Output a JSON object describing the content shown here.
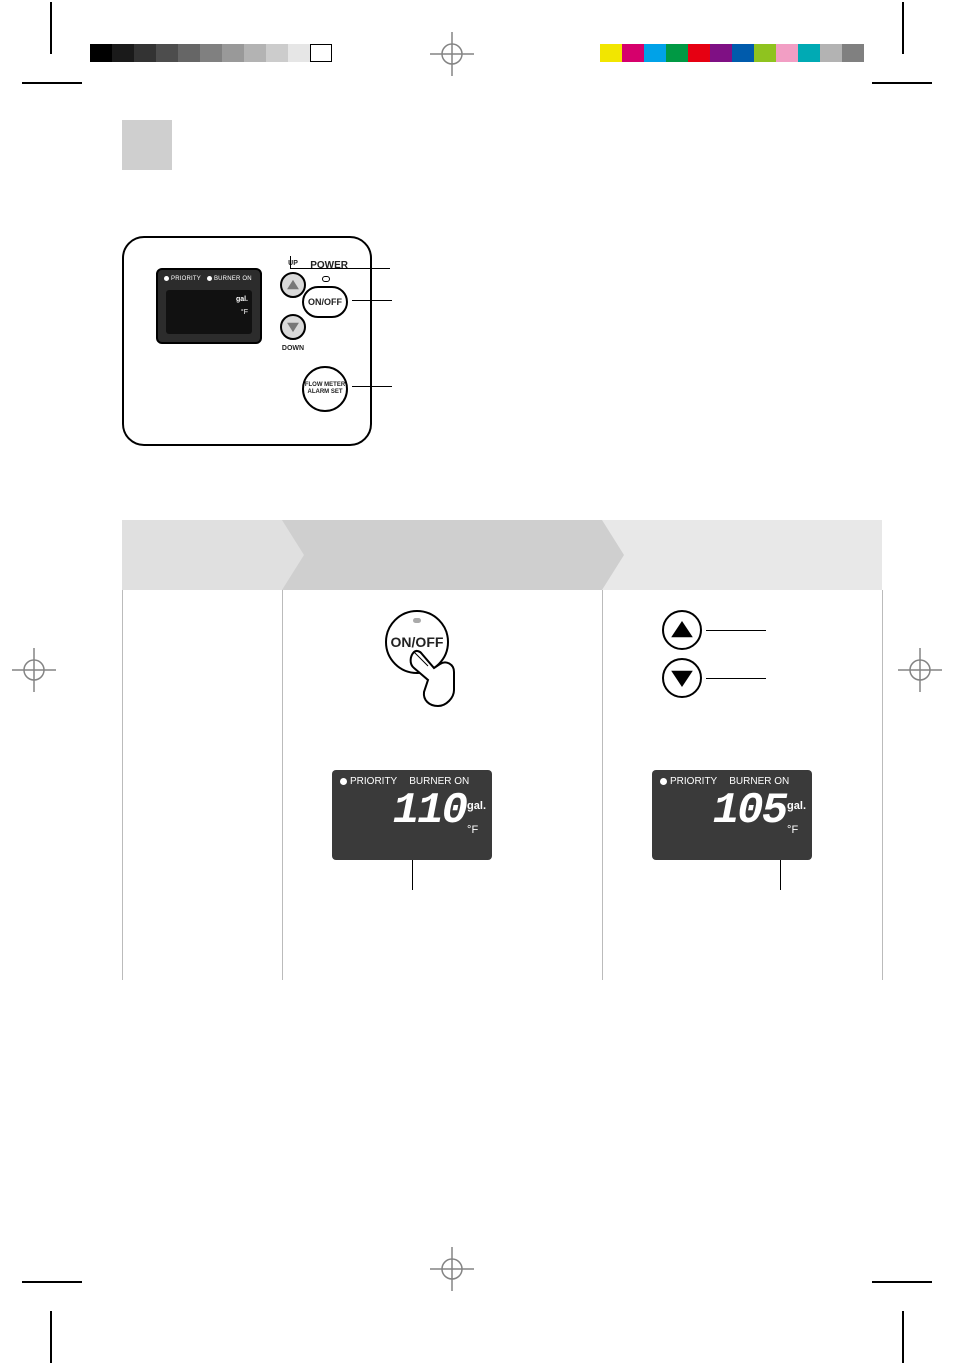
{
  "print_marks": {
    "left_swatches": [
      "#000000",
      "#1a1a1a",
      "#333333",
      "#4d4d4d",
      "#666666",
      "#808080",
      "#999999",
      "#b3b3b3",
      "#cccccc",
      "#e6e6e6",
      "#ffffff"
    ],
    "right_swatches": [
      "#f2e600",
      "#d6006c",
      "#00a2e8",
      "#009944",
      "#e60012",
      "#7f1084",
      "#005bac",
      "#8fc31f",
      "#f29ec4",
      "#00aab4",
      "#b3b3b3",
      "#808080"
    ],
    "crosshair_stroke": "#848484"
  },
  "page_number_box": {
    "bg": "#cfcfcf"
  },
  "controller": {
    "priority_label": "PRIORITY",
    "burner_label": "BURNER ON",
    "gal_label": "gal.",
    "degF_label": "°F",
    "up_label": "UP",
    "down_label": "DOWN",
    "power_label": "POWER",
    "onoff_label": "ON/OFF",
    "flow_label": "FLOW METER\nALARM SET"
  },
  "flow": {
    "header_bg1": "#e0e0e0",
    "header_bg2": "#cfcfcf",
    "header_bg3": "#e8e8e8",
    "divider_color": "#bbbbbb",
    "onoff_label": "ON/OFF",
    "lcd": {
      "bg": "#3a3a3a",
      "priority_label": "PRIORITY",
      "burner_label": "BURNER ON",
      "gal_label": "gal.",
      "degF_label": "°F",
      "panel2_digits": "110",
      "panel3_digits": "105"
    }
  }
}
